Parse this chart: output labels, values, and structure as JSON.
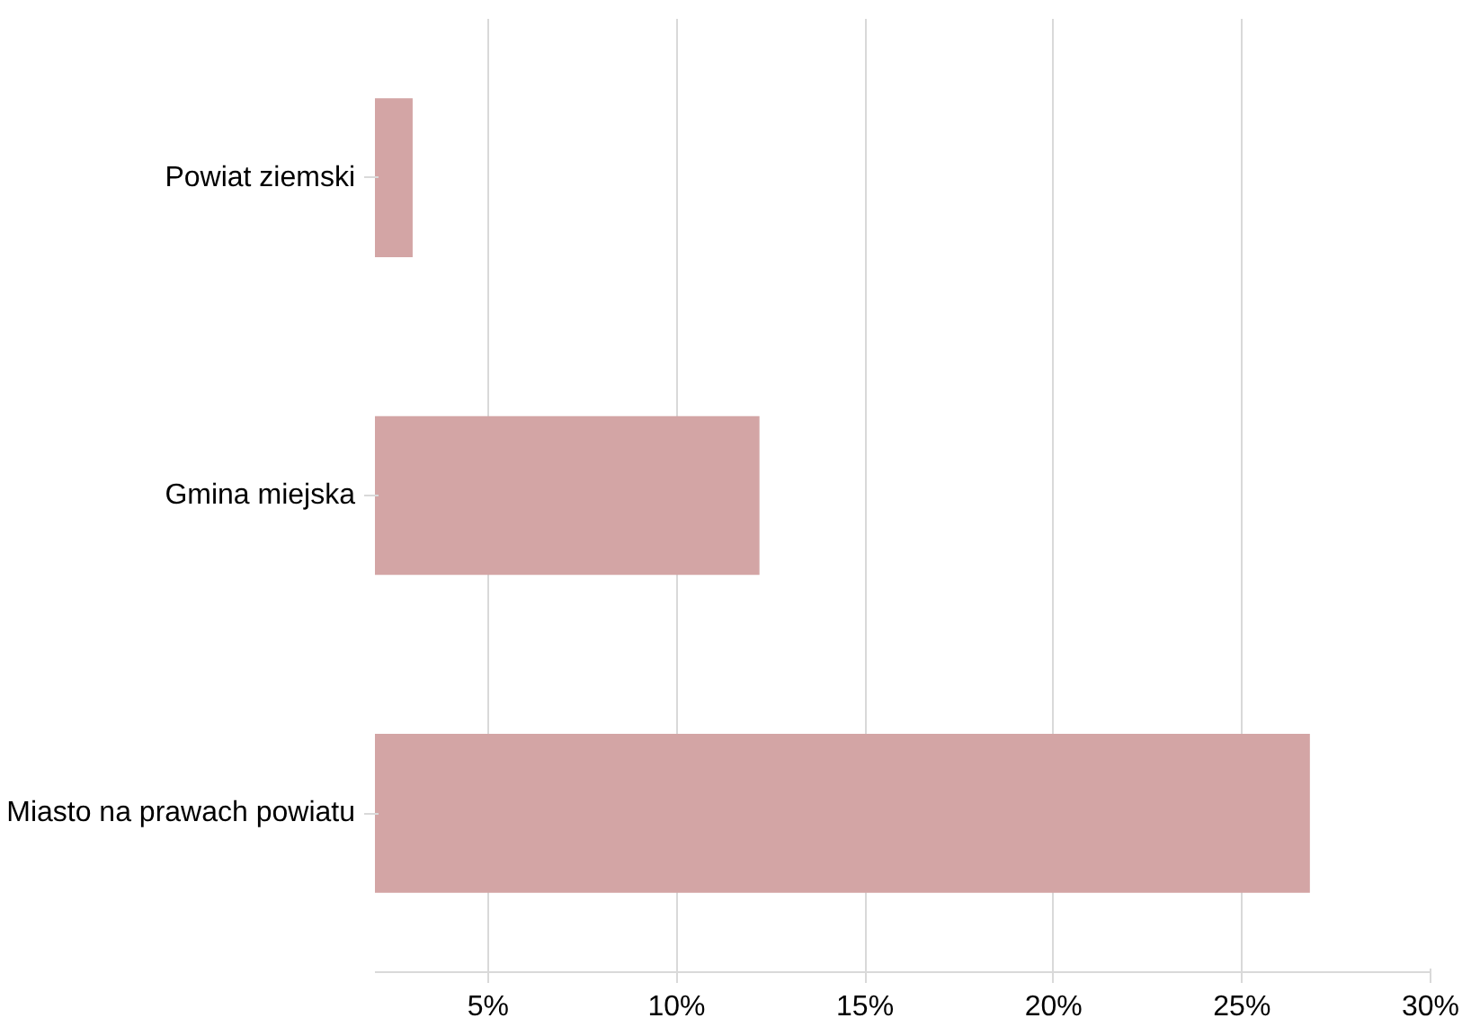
{
  "chart_data": {
    "type": "bar",
    "orientation": "horizontal",
    "categories": [
      "Powiat ziemski",
      "Gmina miejska",
      "Miasto na prawach powiatu"
    ],
    "values": [
      3.0,
      12.2,
      26.8
    ],
    "color": "#d3a5a5",
    "xlim": [
      2,
      30
    ],
    "xticks": [
      {
        "value": 5,
        "label": "5%"
      },
      {
        "value": 10,
        "label": "10%"
      },
      {
        "value": 15,
        "label": "15%"
      },
      {
        "value": 20,
        "label": "20%"
      },
      {
        "value": 25,
        "label": "25%"
      },
      {
        "value": 30,
        "label": "30%"
      }
    ],
    "grid": "x"
  }
}
